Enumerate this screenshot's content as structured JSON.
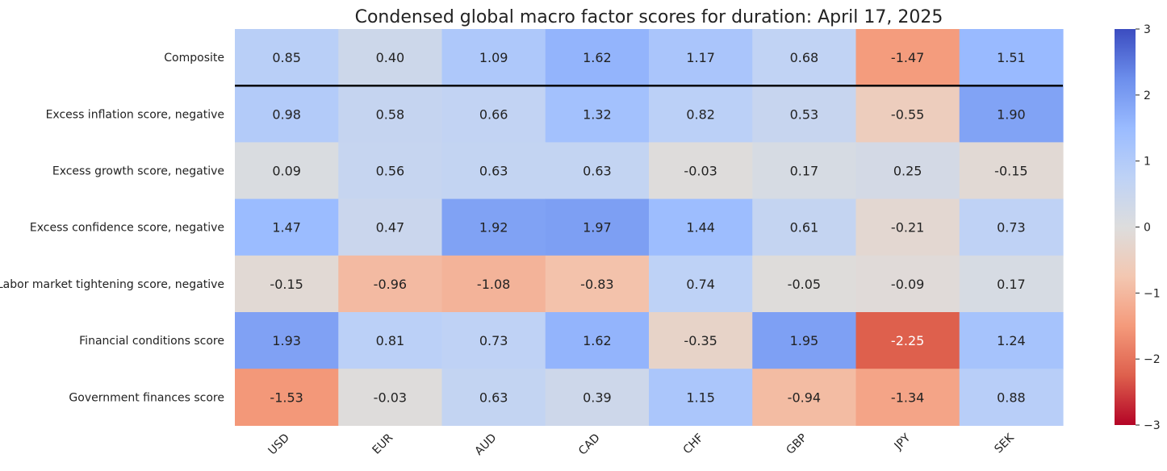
{
  "chart_data": {
    "type": "heatmap",
    "title": "Condensed global macro factor scores for duration: April 17, 2025",
    "xlabel": "",
    "ylabel": "",
    "columns": [
      "USD",
      "EUR",
      "AUD",
      "CAD",
      "CHF",
      "GBP",
      "JPY",
      "SEK"
    ],
    "rows": [
      "Composite",
      "Excess inflation score, negative",
      "Excess growth score, negative",
      "Excess confidence score, negative",
      "Labor market tightening score, negative",
      "Financial conditions score",
      "Government finances score"
    ],
    "values": [
      [
        0.85,
        0.4,
        1.09,
        1.62,
        1.17,
        0.68,
        -1.47,
        1.51
      ],
      [
        0.98,
        0.58,
        0.66,
        1.32,
        0.82,
        0.53,
        -0.55,
        1.9
      ],
      [
        0.09,
        0.56,
        0.63,
        0.63,
        -0.03,
        0.17,
        0.25,
        -0.15
      ],
      [
        1.47,
        0.47,
        1.92,
        1.97,
        1.44,
        0.61,
        -0.21,
        0.73
      ],
      [
        -0.15,
        -0.96,
        -1.08,
        -0.83,
        0.74,
        -0.05,
        -0.09,
        0.17
      ],
      [
        1.93,
        0.81,
        0.73,
        1.62,
        -0.35,
        1.95,
        -2.25,
        1.24
      ],
      [
        -1.53,
        -0.03,
        0.63,
        0.39,
        1.15,
        -0.94,
        -1.34,
        0.88
      ]
    ],
    "colormap": "coolwarm_r",
    "vmin": -3,
    "vmax": 3,
    "colorbar_ticks": [
      "3",
      "2",
      "1",
      "0",
      "−1",
      "−2",
      "−3"
    ],
    "separator_after_row": "Composite",
    "separator_color": "#000000"
  }
}
